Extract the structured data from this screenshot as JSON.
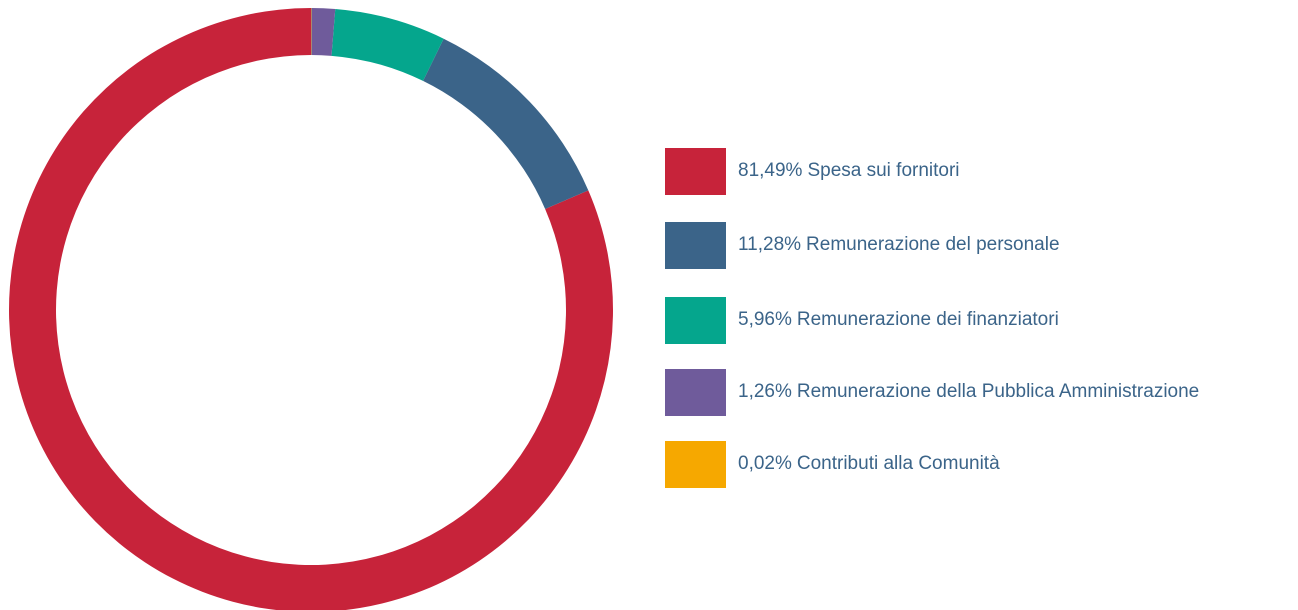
{
  "chart_data": {
    "type": "donut",
    "categories": [
      "Spesa sui fornitori",
      "Remunerazione del personale",
      "Remunerazione dei finanziatori",
      "Remunerazione della Pubblica Amministrazione",
      "Contributi alla Comunità"
    ],
    "values": [
      81.49,
      11.28,
      5.96,
      1.26,
      0.02
    ],
    "value_labels": [
      "81,49%",
      "11,28%",
      "5,96%",
      "1,26%",
      "0,02%"
    ],
    "colors": [
      "#c7233a",
      "#3b6489",
      "#05a68d",
      "#6f5b9b",
      "#f6a800"
    ],
    "legend": "right"
  }
}
